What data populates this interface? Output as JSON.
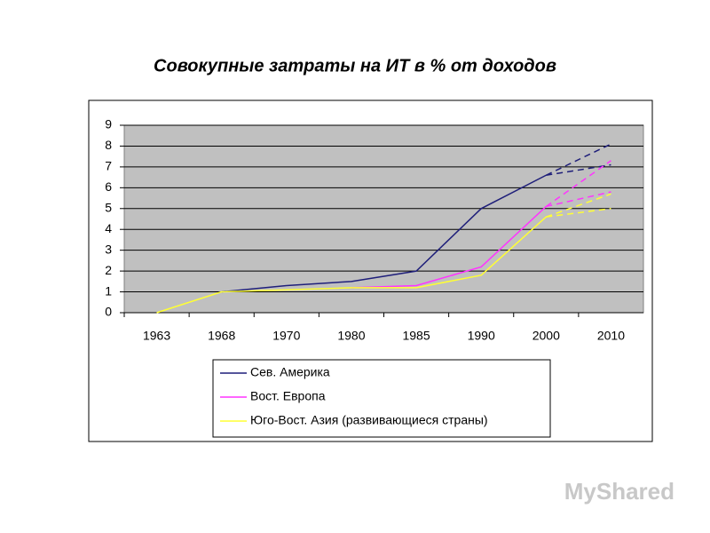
{
  "chart_data": {
    "type": "line",
    "title": "Совокупные затраты на ИТ в % от доходов",
    "categories": [
      "1963",
      "1968",
      "1970",
      "1980",
      "1985",
      "1990",
      "2000",
      "2010"
    ],
    "ylim": [
      0,
      9
    ],
    "yticks": [
      0,
      1,
      2,
      3,
      4,
      5,
      6,
      7,
      8,
      9
    ],
    "grid": true,
    "series": [
      {
        "name": "Сев. Америка",
        "color": "#1f1f7a",
        "values": [
          null,
          1.0,
          1.3,
          1.5,
          2.0,
          5.0,
          6.6,
          null
        ],
        "projections": [
          [
            null,
            null,
            null,
            null,
            null,
            null,
            6.6,
            8.1
          ],
          [
            null,
            null,
            null,
            null,
            null,
            null,
            6.6,
            7.1
          ]
        ]
      },
      {
        "name": "Вост. Европа",
        "color": "#ff33ff",
        "values": [
          null,
          null,
          null,
          1.2,
          1.3,
          2.2,
          5.1,
          null
        ],
        "projections": [
          [
            null,
            null,
            null,
            null,
            null,
            null,
            5.1,
            7.3
          ],
          [
            null,
            null,
            null,
            null,
            null,
            null,
            5.1,
            5.8
          ]
        ]
      },
      {
        "name": "Юго-Вост. Азия (развивающиеся страны)",
        "color": "#ffff33",
        "values": [
          0.0,
          1.0,
          1.1,
          1.2,
          1.2,
          1.8,
          4.6,
          null
        ],
        "projections": [
          [
            null,
            null,
            null,
            null,
            null,
            null,
            4.6,
            5.7
          ],
          [
            null,
            null,
            null,
            null,
            null,
            null,
            4.6,
            5.0
          ]
        ]
      }
    ]
  },
  "watermark": "MyShared"
}
